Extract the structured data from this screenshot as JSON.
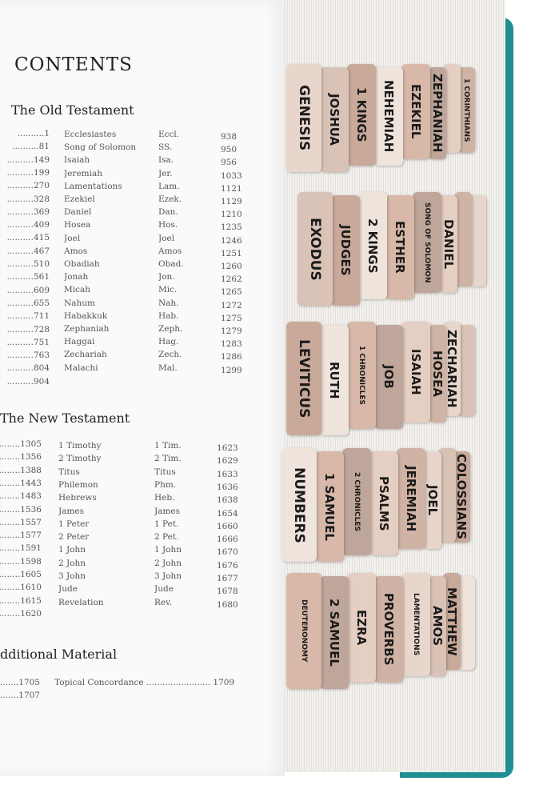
{
  "contents": {
    "title": "CONTENTS",
    "old_testament": {
      "heading": "The Old Testament",
      "left_pages": [
        "1",
        "81",
        "149",
        "199",
        "270",
        "328",
        "369",
        "409",
        "415",
        "467",
        "510",
        "561",
        "609",
        "655",
        "711",
        "728",
        "751",
        "763",
        "804",
        "904"
      ],
      "books": [
        [
          "Ecclesiastes",
          "Eccl.",
          "938"
        ],
        [
          "Song of Solomon",
          "SS.",
          "950"
        ],
        [
          "Isaiah",
          "Isa.",
          "956"
        ],
        [
          "Jeremiah",
          "Jer.",
          "1033"
        ],
        [
          "Lamentations",
          "Lam.",
          "1121"
        ],
        [
          "Ezekiel",
          "Ezek.",
          "1129"
        ],
        [
          "Daniel",
          "Dan.",
          "1210"
        ],
        [
          "Hosea",
          "Hos.",
          "1235"
        ],
        [
          "Joel",
          "Joel",
          "1246"
        ],
        [
          "Amos",
          "Amos",
          "1251"
        ],
        [
          "Obadiah",
          "Obad.",
          "1260"
        ],
        [
          "Jonah",
          "Jon.",
          "1262"
        ],
        [
          "Micah",
          "Mic.",
          "1265"
        ],
        [
          "Nahum",
          "Nah.",
          "1272"
        ],
        [
          "Habakkuk",
          "Hab.",
          "1275"
        ],
        [
          "Zephaniah",
          "Zeph.",
          "1279"
        ],
        [
          "Haggai",
          "Hag.",
          "1283"
        ],
        [
          "Zechariah",
          "Zech.",
          "1286"
        ],
        [
          "Malachi",
          "Mal.",
          "1299"
        ]
      ]
    },
    "new_testament": {
      "heading": "The New Testament",
      "left_pages": [
        "1305",
        "1356",
        "1388",
        "1443",
        "1483",
        "1536",
        "1557",
        "1577",
        "1591",
        "1598",
        "1605",
        "1610",
        "1615",
        "1620"
      ],
      "books": [
        [
          "1 Timothy",
          "1 Tim.",
          "1623"
        ],
        [
          "2 Timothy",
          "2 Tim.",
          "1629"
        ],
        [
          "Titus",
          "Titus",
          "1633"
        ],
        [
          "Philemon",
          "Phm.",
          "1636"
        ],
        [
          "Hebrews",
          "Heb.",
          "1638"
        ],
        [
          "James",
          "James",
          "1654"
        ],
        [
          "1 Peter",
          "1 Pet.",
          "1660"
        ],
        [
          "2 Peter",
          "2 Pet.",
          "1666"
        ],
        [
          "1 John",
          "1 John",
          "1670"
        ],
        [
          "2 John",
          "2 John",
          "1676"
        ],
        [
          "3 John",
          "3 John",
          "1677"
        ],
        [
          "Jude",
          "Jude",
          "1678"
        ],
        [
          "Revelation",
          "Rev.",
          "1680"
        ]
      ]
    },
    "additional": {
      "heading": "dditional Material",
      "left_pages": [
        "1705",
        "1707"
      ],
      "items": [
        [
          "Topical Concordance",
          "1709"
        ]
      ]
    }
  },
  "tabs": [
    [
      "GENESIS",
      "JOSHUA",
      "1 KINGS",
      "NEHEMIAH",
      "EZEKIEL",
      "ZEPHANIAH",
      "",
      "1 CORINTHIANS"
    ],
    [
      "EXODUS",
      "JUDGES",
      "2 KINGS",
      "ESTHER",
      "SONG OF SOLOMON",
      "DANIEL",
      "",
      ""
    ],
    [
      "LEVITICUS",
      "RUTH",
      "1 CHRONICLES",
      "JOB",
      "ISAIAH",
      "HOSEA",
      "ZECHARIAH",
      ""
    ],
    [
      "NUMBERS",
      "1 SAMUEL",
      "2 CHRONICLES",
      "PSALMS",
      "JEREMIAH",
      "JOEL",
      "",
      "COLOSSIANS"
    ],
    [
      "DEUTERONOMY",
      "2 SAMUEL",
      "EZRA",
      "PROVERBS",
      "LAMENTATIONS",
      "AMOS",
      "MATTHEW",
      ""
    ]
  ],
  "colors": {
    "cover": "#1f8f94",
    "tab_tones": [
      "#e8d6cc",
      "#d9c2b6",
      "#c9a99a",
      "#eee4dc",
      "#d8b8a8",
      "#bfa69a",
      "#e5cfc3",
      "#cfb3a4"
    ]
  }
}
